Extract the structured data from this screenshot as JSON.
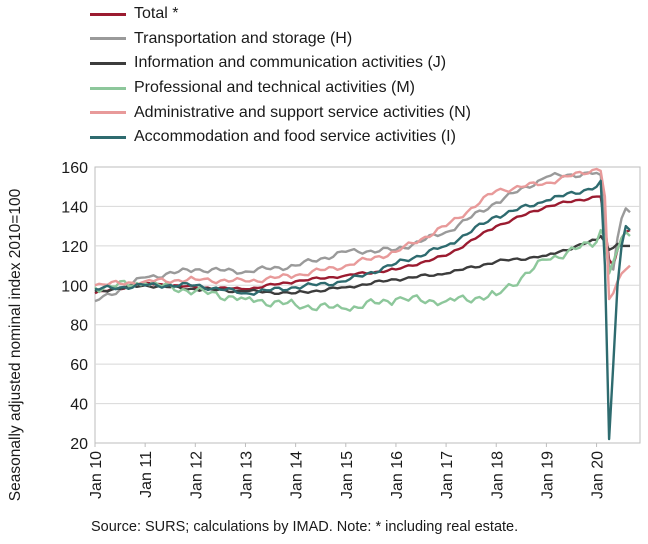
{
  "chart_data": {
    "type": "line",
    "ylabel": "Seasonally adjusted nominal index 2010=100",
    "xlabel": "",
    "ylim": [
      20,
      160
    ],
    "yticks": [
      20,
      40,
      60,
      80,
      100,
      120,
      140,
      160
    ],
    "xticks": [
      "Jan 10",
      "Jan 11",
      "Jan 12",
      "Jan 13",
      "Jan 14",
      "Jan 15",
      "Jan 16",
      "Jan 17",
      "Jan 18",
      "Jan 19",
      "Jan 20"
    ],
    "grid": "horizontal",
    "legend_position": "top-left",
    "x_knots": [
      "2010-01",
      "2011-01",
      "2012-01",
      "2013-01",
      "2014-01",
      "2015-01",
      "2016-01",
      "2017-01",
      "2018-01",
      "2019-01",
      "2020-01",
      "2020-02",
      "2020-03",
      "2020-04",
      "2020-05",
      "2020-06",
      "2020-07",
      "2020-08",
      "2020-09"
    ],
    "series": [
      {
        "name": "Total *",
        "color": "#9b1b30",
        "values": [
          96,
          101,
          99,
          98,
          102,
          105,
          108,
          115,
          130,
          140,
          145,
          145,
          130,
          113,
          110,
          118,
          124,
          127,
          128
        ]
      },
      {
        "name": "Transportation and storage (H)",
        "color": "#9a9a9a",
        "values": [
          92,
          104,
          108,
          107,
          110,
          117,
          118,
          127,
          142,
          155,
          157,
          156,
          130,
          110,
          108,
          124,
          134,
          139,
          137
        ]
      },
      {
        "name": "Information and communication activities (J)",
        "color": "#3c3c3c",
        "values": [
          97,
          100,
          98,
          97,
          96,
          99,
          103,
          106,
          112,
          115,
          123,
          125,
          122,
          118,
          119,
          121,
          120,
          120,
          120
        ]
      },
      {
        "name": "Professional and technical activities (M)",
        "color": "#8dc79b",
        "values": [
          99,
          101,
          97,
          93,
          90,
          88,
          93,
          92,
          95,
          113,
          122,
          128,
          124,
          106,
          112,
          118,
          124,
          127,
          125
        ]
      },
      {
        "name": "Administrative and support service activities (N)",
        "color": "#e89a9a",
        "values": [
          100,
          102,
          103,
          102,
          105,
          110,
          117,
          130,
          148,
          152,
          159,
          158,
          145,
          93,
          96,
          102,
          106,
          108,
          110
        ]
      },
      {
        "name": "Accommodation and food service activities (I)",
        "color": "#2e6b6f",
        "values": [
          98,
          100,
          100,
          96,
          99,
          102,
          111,
          120,
          135,
          143,
          150,
          153,
          110,
          22,
          60,
          100,
          120,
          130,
          128
        ]
      }
    ]
  },
  "source_note": "Source:  SURS; calculations by IMAD. Note: * including real estate."
}
